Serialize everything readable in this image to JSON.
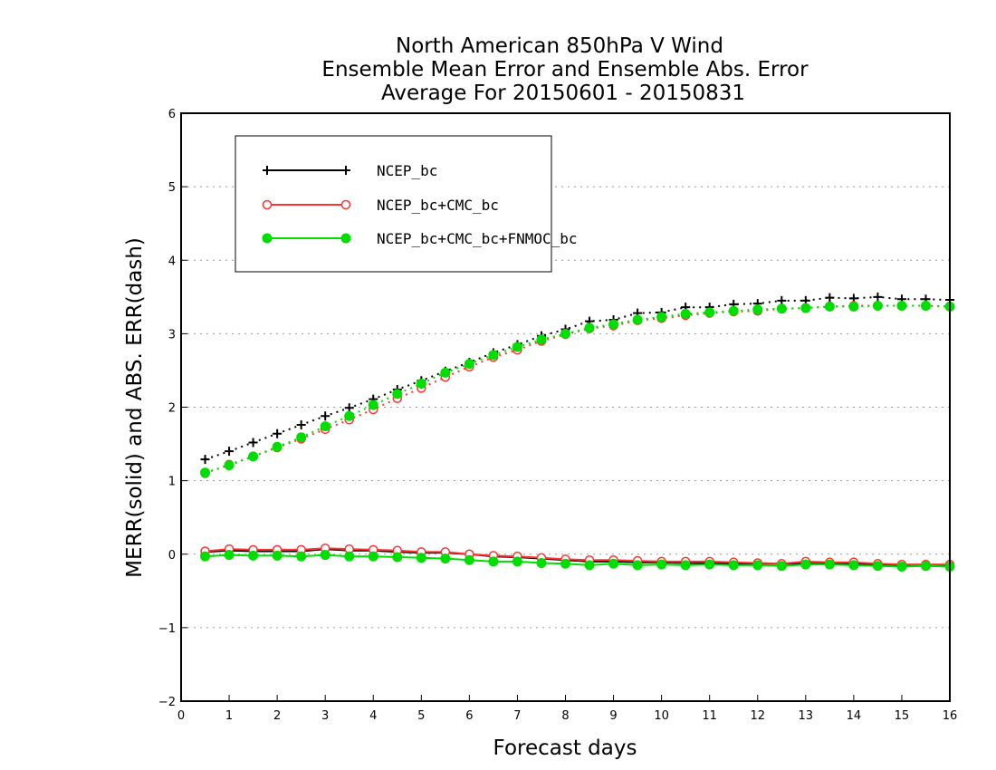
{
  "chart_data": {
    "type": "line",
    "title_lines": [
      "North American 850hPa V Wind",
      "Ensemble Mean Error and Ensemble Abs. Error",
      "Average For 20150601 - 20150831"
    ],
    "xlabel": "Forecast days",
    "ylabel": "MERR(solid) and ABS. ERR(dash)",
    "xlim": [
      0,
      16
    ],
    "ylim": [
      -2,
      6
    ],
    "xticks": [
      0,
      1,
      2,
      3,
      4,
      5,
      6,
      7,
      8,
      9,
      10,
      11,
      12,
      13,
      14,
      15,
      16
    ],
    "yticks": [
      -2,
      -1,
      0,
      1,
      2,
      3,
      4,
      5,
      6
    ],
    "ytick_labels": [
      "−2",
      "−1",
      "0",
      "1",
      "2",
      "3",
      "4",
      "5",
      "6"
    ],
    "grid": "horizontal dotted",
    "legend_position": "top-left",
    "x": [
      0.5,
      1,
      1.5,
      2,
      2.5,
      3,
      3.5,
      4,
      4.5,
      5,
      5.5,
      6,
      6.5,
      7,
      7.5,
      8,
      8.5,
      9,
      9.5,
      10,
      10.5,
      11,
      11.5,
      12,
      12.5,
      13,
      13.5,
      14,
      14.5,
      15,
      15.5,
      16
    ],
    "series": [
      {
        "name": "NCEP_bc",
        "color": "#000000",
        "marker": "plus",
        "merr": [
          0.03,
          0.05,
          0.04,
          0.04,
          0.04,
          0.07,
          0.05,
          0.05,
          0.03,
          0.02,
          0.02,
          0.0,
          -0.03,
          -0.04,
          -0.06,
          -0.08,
          -0.1,
          -0.1,
          -0.11,
          -0.11,
          -0.12,
          -0.12,
          -0.13,
          -0.13,
          -0.13,
          -0.13,
          -0.13,
          -0.13,
          -0.14,
          -0.15,
          -0.15,
          -0.16
        ],
        "abs_err": [
          1.29,
          1.4,
          1.52,
          1.64,
          1.76,
          1.88,
          1.99,
          2.11,
          2.24,
          2.36,
          2.49,
          2.61,
          2.74,
          2.85,
          2.97,
          3.06,
          3.17,
          3.19,
          3.28,
          3.29,
          3.36,
          3.36,
          3.4,
          3.41,
          3.45,
          3.45,
          3.49,
          3.48,
          3.5,
          3.47,
          3.47,
          3.46
        ]
      },
      {
        "name": "NCEP_bc+CMC_bc",
        "color": "#ff3333",
        "marker": "open-circle",
        "merr": [
          0.04,
          0.07,
          0.06,
          0.06,
          0.06,
          0.08,
          0.07,
          0.06,
          0.05,
          0.03,
          0.03,
          0.0,
          -0.02,
          -0.03,
          -0.05,
          -0.07,
          -0.08,
          -0.08,
          -0.09,
          -0.1,
          -0.1,
          -0.1,
          -0.11,
          -0.12,
          -0.13,
          -0.1,
          -0.11,
          -0.11,
          -0.13,
          -0.14,
          -0.14,
          -0.14
        ],
        "abs_err": [
          1.1,
          1.22,
          1.33,
          1.45,
          1.57,
          1.7,
          1.83,
          1.97,
          2.12,
          2.26,
          2.41,
          2.55,
          2.68,
          2.78,
          2.9,
          2.99,
          3.07,
          3.11,
          3.18,
          3.21,
          3.25,
          3.28,
          3.3,
          3.31,
          3.34,
          3.35,
          3.37,
          3.38,
          3.38,
          3.38,
          3.38,
          3.37
        ]
      },
      {
        "name": "NCEP_bc+CMC_bc+FNMOC_bc",
        "color": "#00dd00",
        "marker": "filled-circle",
        "merr": [
          -0.03,
          -0.01,
          -0.02,
          -0.02,
          -0.03,
          -0.01,
          -0.03,
          -0.03,
          -0.04,
          -0.05,
          -0.06,
          -0.08,
          -0.1,
          -0.1,
          -0.12,
          -0.13,
          -0.15,
          -0.13,
          -0.15,
          -0.14,
          -0.15,
          -0.14,
          -0.15,
          -0.15,
          -0.16,
          -0.14,
          -0.14,
          -0.15,
          -0.16,
          -0.17,
          -0.16,
          -0.17
        ],
        "abs_err": [
          1.11,
          1.21,
          1.33,
          1.46,
          1.59,
          1.74,
          1.88,
          2.03,
          2.18,
          2.32,
          2.47,
          2.59,
          2.71,
          2.82,
          2.92,
          3.0,
          3.08,
          3.13,
          3.19,
          3.23,
          3.27,
          3.29,
          3.31,
          3.33,
          3.34,
          3.35,
          3.37,
          3.37,
          3.38,
          3.38,
          3.38,
          3.37
        ]
      }
    ]
  }
}
